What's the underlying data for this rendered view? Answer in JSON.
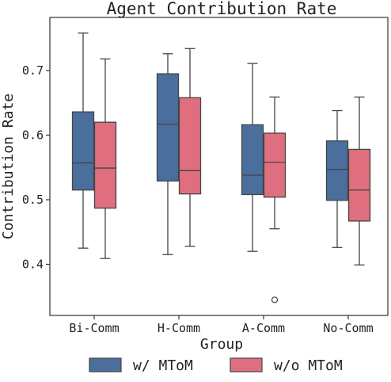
{
  "chart_data": {
    "type": "box",
    "title": "Agent Contribution Rate",
    "xlabel": "Group",
    "ylabel": "Contribution Rate",
    "categories": [
      "Bi-Comm",
      "H-Comm",
      "A-Comm",
      "No-Comm"
    ],
    "yticks": [
      "0.4",
      "0.5",
      "0.6",
      "0.7"
    ],
    "ylim": [
      0.36,
      0.78
    ],
    "grid": false,
    "legend_position": "bottom",
    "series": [
      {
        "name": "w/ MToM",
        "color": "#4a6f9c",
        "boxes": [
          {
            "whisker_low": 0.425,
            "q1": 0.515,
            "median": 0.557,
            "q3": 0.636,
            "whisker_high": 0.758,
            "outliers": []
          },
          {
            "whisker_low": 0.415,
            "q1": 0.529,
            "median": 0.617,
            "q3": 0.695,
            "whisker_high": 0.726,
            "outliers": []
          },
          {
            "whisker_low": 0.42,
            "q1": 0.508,
            "median": 0.538,
            "q3": 0.616,
            "whisker_high": 0.711,
            "outliers": []
          },
          {
            "whisker_low": 0.426,
            "q1": 0.499,
            "median": 0.547,
            "q3": 0.591,
            "whisker_high": 0.638,
            "outliers": []
          }
        ]
      },
      {
        "name": "w/o MToM",
        "color": "#df6f7e",
        "boxes": [
          {
            "whisker_low": 0.409,
            "q1": 0.487,
            "median": 0.549,
            "q3": 0.62,
            "whisker_high": 0.718,
            "outliers": []
          },
          {
            "whisker_low": 0.428,
            "q1": 0.509,
            "median": 0.545,
            "q3": 0.658,
            "whisker_high": 0.734,
            "outliers": []
          },
          {
            "whisker_low": 0.455,
            "q1": 0.504,
            "median": 0.558,
            "q3": 0.603,
            "whisker_high": 0.659,
            "outliers": [
              0.345
            ]
          },
          {
            "whisker_low": 0.399,
            "q1": 0.467,
            "median": 0.515,
            "q3": 0.578,
            "whisker_high": 0.659,
            "outliers": []
          }
        ]
      }
    ]
  }
}
